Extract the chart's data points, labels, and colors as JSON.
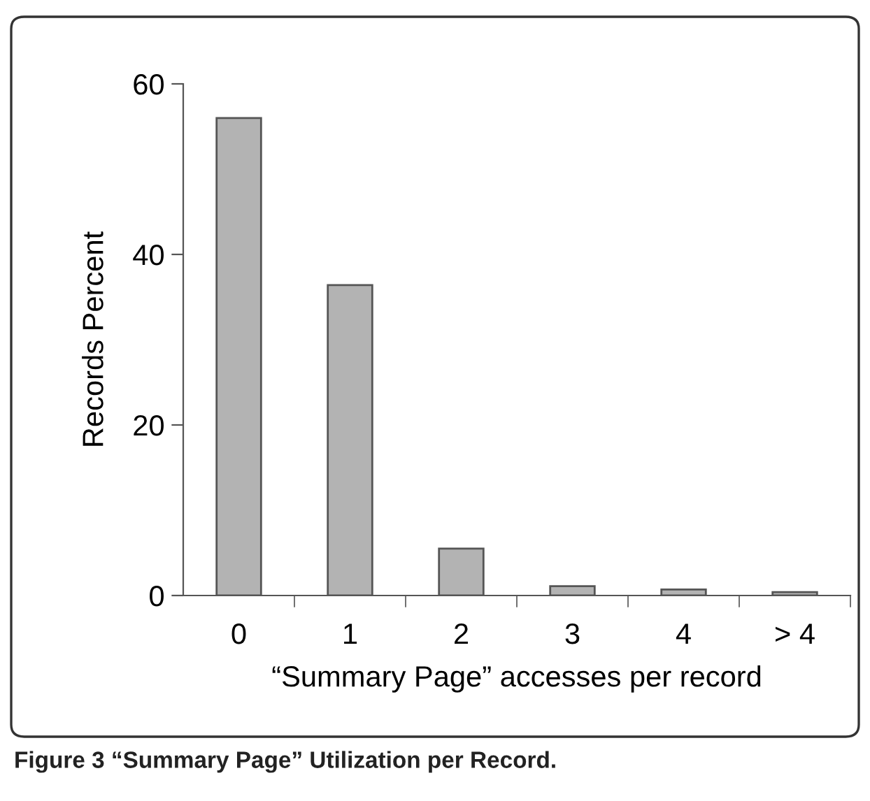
{
  "chart_data": {
    "type": "bar",
    "xlabel": "“Summary Page” accesses per record",
    "ylabel": "Records Percent",
    "categories": [
      "0",
      "1",
      "2",
      "3",
      "4",
      "> 4"
    ],
    "values": [
      56.0,
      36.4,
      5.5,
      1.1,
      0.7,
      0.4
    ],
    "color": "#b3b3b3",
    "ylim": [
      0,
      60
    ],
    "yticks": [
      0,
      20,
      40,
      60
    ],
    "grid": false,
    "legend": false,
    "annotations": [
      "Figure 3 “Summary Page” Utilization per Record."
    ]
  }
}
